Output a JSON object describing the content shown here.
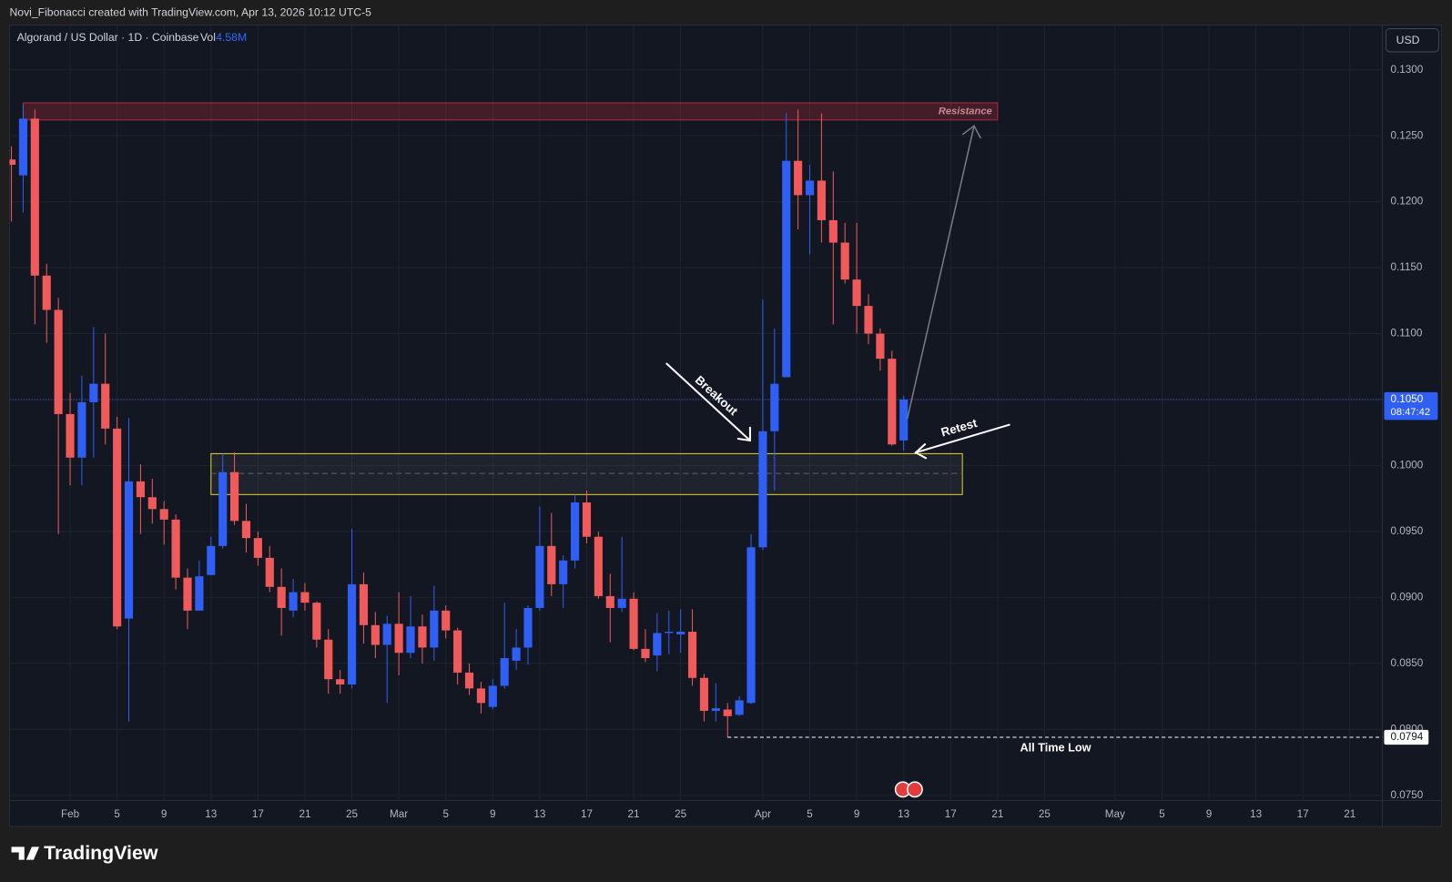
{
  "chart_data": {
    "type": "candlestick",
    "credit": "Novi_Fibonacci created with TradingView.com, Apr 13, 2026 10:12 UTC-5",
    "title": "Algorand / US Dollar · 1D · Coinbase",
    "volume_label": "Vol",
    "volume": "4.58M",
    "currency": "USD",
    "brand": "TradingView",
    "up_color": "#2f5ff5",
    "down_color": "#f05a5a",
    "grid": true,
    "x": [
      "2026-01-27",
      "2026-01-28",
      "2026-01-29",
      "2026-01-30",
      "2026-01-31",
      "2026-02-01",
      "2026-02-02",
      "2026-02-03",
      "2026-02-04",
      "2026-02-05",
      "2026-02-06",
      "2026-02-07",
      "2026-02-08",
      "2026-02-09",
      "2026-02-10",
      "2026-02-11",
      "2026-02-12",
      "2026-02-13",
      "2026-02-14",
      "2026-02-15",
      "2026-02-16",
      "2026-02-17",
      "2026-02-18",
      "2026-02-19",
      "2026-02-20",
      "2026-02-21",
      "2026-02-22",
      "2026-02-23",
      "2026-02-24",
      "2026-02-25",
      "2026-02-26",
      "2026-02-27",
      "2026-02-28",
      "2026-03-01",
      "2026-03-02",
      "2026-03-03",
      "2026-03-04",
      "2026-03-05",
      "2026-03-06",
      "2026-03-07",
      "2026-03-08",
      "2026-03-09",
      "2026-03-10",
      "2026-03-11",
      "2026-03-12",
      "2026-03-13",
      "2026-03-14",
      "2026-03-15",
      "2026-03-16",
      "2026-03-17",
      "2026-03-18",
      "2026-03-19",
      "2026-03-20",
      "2026-03-21",
      "2026-03-22",
      "2026-03-23",
      "2026-03-24",
      "2026-03-25",
      "2026-03-26",
      "2026-03-27",
      "2026-03-28",
      "2026-03-29",
      "2026-03-30",
      "2026-03-31",
      "2026-04-01",
      "2026-04-02",
      "2026-04-03",
      "2026-04-04",
      "2026-04-05",
      "2026-04-06",
      "2026-04-07",
      "2026-04-08",
      "2026-04-09",
      "2026-04-10",
      "2026-04-11",
      "2026-04-12",
      "2026-04-13"
    ],
    "open": [
      0.1232,
      0.122,
      0.1263,
      0.1144,
      0.1118,
      0.1039,
      0.1006,
      0.1048,
      0.1062,
      0.1028,
      0.0884,
      0.0988,
      0.0976,
      0.0967,
      0.0959,
      0.0915,
      0.089,
      0.0917,
      0.0939,
      0.0995,
      0.0958,
      0.0945,
      0.093,
      0.0908,
      0.089,
      0.0904,
      0.0896,
      0.0868,
      0.0838,
      0.0834,
      0.091,
      0.0879,
      0.0864,
      0.088,
      0.0858,
      0.0878,
      0.0862,
      0.089,
      0.0875,
      0.0843,
      0.0831,
      0.0817,
      0.0833,
      0.0852,
      0.0862,
      0.0892,
      0.0939,
      0.091,
      0.0928,
      0.0972,
      0.0946,
      0.0901,
      0.0892,
      0.0899,
      0.0861,
      0.0856,
      0.0873,
      0.0872,
      0.0874,
      0.0839,
      0.0814,
      0.0815,
      0.0811,
      0.082,
      0.0938,
      0.1026,
      0.1067,
      0.1231,
      0.1205,
      0.1216,
      0.1186,
      0.1169,
      0.1141,
      0.1121,
      0.11,
      0.1081,
      0.1019
    ],
    "high": [
      0.1242,
      0.1274,
      0.127,
      0.1153,
      0.1127,
      0.1055,
      0.1068,
      0.1105,
      0.11,
      0.1037,
      0.1036,
      0.1001,
      0.099,
      0.0973,
      0.0963,
      0.0922,
      0.0928,
      0.0946,
      0.1009,
      0.101,
      0.0971,
      0.095,
      0.0939,
      0.0922,
      0.0914,
      0.0911,
      0.0897,
      0.0876,
      0.0845,
      0.0952,
      0.0919,
      0.0889,
      0.0886,
      0.0904,
      0.0901,
      0.0887,
      0.0909,
      0.0894,
      0.0877,
      0.085,
      0.0836,
      0.0838,
      0.0896,
      0.0876,
      0.0894,
      0.0969,
      0.0964,
      0.0932,
      0.0978,
      0.0981,
      0.095,
      0.0918,
      0.0946,
      0.0904,
      0.0876,
      0.0888,
      0.089,
      0.0891,
      0.0891,
      0.0842,
      0.0835,
      0.082,
      0.0825,
      0.0948,
      0.1126,
      0.1104,
      0.1267,
      0.127,
      0.1228,
      0.1267,
      0.1223,
      0.1184,
      0.1184,
      0.113,
      0.1104,
      0.1087,
      0.1053
    ],
    "low": [
      0.1185,
      0.1192,
      0.1107,
      0.1093,
      0.0948,
      0.0985,
      0.0985,
      0.1006,
      0.1016,
      0.0876,
      0.0806,
      0.0948,
      0.0956,
      0.094,
      0.0906,
      0.0876,
      0.0891,
      0.092,
      0.0937,
      0.0955,
      0.0934,
      0.0924,
      0.0904,
      0.0871,
      0.0885,
      0.089,
      0.0862,
      0.0827,
      0.0827,
      0.0831,
      0.0865,
      0.0854,
      0.082,
      0.0841,
      0.0854,
      0.085,
      0.0852,
      0.0869,
      0.0834,
      0.0826,
      0.0812,
      0.0815,
      0.0831,
      0.0845,
      0.0849,
      0.089,
      0.0901,
      0.0892,
      0.0922,
      0.0941,
      0.0899,
      0.0866,
      0.0889,
      0.086,
      0.0851,
      0.0844,
      0.0857,
      0.0858,
      0.0833,
      0.0806,
      0.0806,
      0.0794,
      0.081,
      0.0819,
      0.0936,
      0.0981,
      0.1067,
      0.1179,
      0.116,
      0.1169,
      0.1107,
      0.1138,
      0.11,
      0.1092,
      0.1072,
      0.1015,
      0.1011
    ],
    "close": [
      0.1228,
      0.1263,
      0.1144,
      0.1118,
      0.1039,
      0.1006,
      0.1048,
      0.1062,
      0.1028,
      0.0878,
      0.0988,
      0.0976,
      0.0967,
      0.0959,
      0.0915,
      0.089,
      0.0916,
      0.0939,
      0.0995,
      0.0958,
      0.0945,
      0.093,
      0.0908,
      0.0892,
      0.0904,
      0.0896,
      0.0868,
      0.0838,
      0.0834,
      0.091,
      0.0879,
      0.0864,
      0.088,
      0.0858,
      0.0878,
      0.0862,
      0.089,
      0.0875,
      0.0843,
      0.0831,
      0.082,
      0.0833,
      0.0854,
      0.0862,
      0.0892,
      0.0939,
      0.091,
      0.0928,
      0.0972,
      0.0946,
      0.0901,
      0.0892,
      0.0899,
      0.0861,
      0.0854,
      0.0873,
      0.0874,
      0.0874,
      0.0839,
      0.0814,
      0.0816,
      0.081,
      0.0822,
      0.0938,
      0.1026,
      0.1062,
      0.1231,
      0.1205,
      0.1216,
      0.1186,
      0.1169,
      0.1141,
      0.1121,
      0.11,
      0.1081,
      0.1016,
      0.105
    ],
    "xlim": [
      "2026-01-27",
      "2026-05-24"
    ],
    "xticks": [
      {
        "value": "2026-02-01",
        "label": "Feb"
      },
      {
        "value": "2026-02-05",
        "label": "5"
      },
      {
        "value": "2026-02-09",
        "label": "9"
      },
      {
        "value": "2026-02-13",
        "label": "13"
      },
      {
        "value": "2026-02-17",
        "label": "17"
      },
      {
        "value": "2026-02-21",
        "label": "21"
      },
      {
        "value": "2026-02-25",
        "label": "25"
      },
      {
        "value": "2026-03-01",
        "label": "Mar"
      },
      {
        "value": "2026-03-05",
        "label": "5"
      },
      {
        "value": "2026-03-09",
        "label": "9"
      },
      {
        "value": "2026-03-13",
        "label": "13"
      },
      {
        "value": "2026-03-17",
        "label": "17"
      },
      {
        "value": "2026-03-21",
        "label": "21"
      },
      {
        "value": "2026-03-25",
        "label": "25"
      },
      {
        "value": "2026-04-01",
        "label": "Apr"
      },
      {
        "value": "2026-04-05",
        "label": "5"
      },
      {
        "value": "2026-04-09",
        "label": "9"
      },
      {
        "value": "2026-04-13",
        "label": "13"
      },
      {
        "value": "2026-04-17",
        "label": "17"
      },
      {
        "value": "2026-04-21",
        "label": "21"
      },
      {
        "value": "2026-04-25",
        "label": "25"
      },
      {
        "value": "2026-05-01",
        "label": "May"
      },
      {
        "value": "2026-05-05",
        "label": "5"
      },
      {
        "value": "2026-05-09",
        "label": "9"
      },
      {
        "value": "2026-05-13",
        "label": "13"
      },
      {
        "value": "2026-05-17",
        "label": "17"
      },
      {
        "value": "2026-05-21",
        "label": "21"
      }
    ],
    "ylim": [
      0.0746,
      0.1334
    ],
    "yticks": [
      {
        "value": 0.075,
        "label": "0.0750"
      },
      {
        "value": 0.08,
        "label": "0.0800"
      },
      {
        "value": 0.085,
        "label": "0.0850"
      },
      {
        "value": 0.09,
        "label": "0.0900"
      },
      {
        "value": 0.095,
        "label": "0.0950"
      },
      {
        "value": 0.1,
        "label": "0.1000"
      },
      {
        "value": 0.105,
        "label": "0.1050"
      },
      {
        "value": 0.11,
        "label": "0.1100"
      },
      {
        "value": 0.115,
        "label": "0.1150"
      },
      {
        "value": 0.12,
        "label": "0.1200"
      },
      {
        "value": 0.125,
        "label": "0.1250"
      },
      {
        "value": 0.13,
        "label": "0.1300"
      }
    ],
    "last_price": {
      "value": 0.105,
      "label": "0.1050",
      "countdown": "08:47:42"
    },
    "all_time_low": {
      "value": 0.0794,
      "text": "All Time Low",
      "start": "2026-03-29"
    },
    "zones": [
      {
        "label": "Resistance",
        "start": "2026-01-28",
        "end": "2026-04-21",
        "low": 0.1262,
        "high": 0.1275,
        "fill": "rgba(242,54,69,0.22)",
        "color": "#b0283a"
      },
      {
        "start": "2026-02-13",
        "end": "2026-04-18",
        "low": 0.0978,
        "high": 0.1009,
        "mid": 0.0994,
        "fill": "rgba(120,123,134,0.12)",
        "color": "#e2d12e"
      }
    ],
    "annotations": [
      "Breakout",
      "Retest"
    ]
  }
}
